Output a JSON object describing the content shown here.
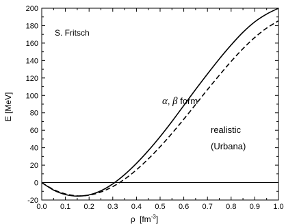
{
  "chart_data": {
    "type": "line",
    "title": "",
    "xlabel_symbol": "ρ",
    "xlabel_unit": "[fm",
    "xlabel_exp": "-3",
    "xlabel_close": "]",
    "ylabel": "E [MeV]",
    "xlim": [
      0.0,
      1.0
    ],
    "ylim": [
      -20,
      200
    ],
    "x_ticks": [
      "0.0",
      "0.1",
      "0.2",
      "0.3",
      "0.4",
      "0.5",
      "0.6",
      "0.7",
      "0.8",
      "0.9",
      "1.0"
    ],
    "y_ticks": [
      "-20",
      "0",
      "20",
      "40",
      "60",
      "80",
      "100",
      "120",
      "140",
      "160",
      "180",
      "200"
    ],
    "grid": false,
    "zero_line": true,
    "series": [
      {
        "name": "α, β form",
        "style": "solid",
        "x": [
          0.0,
          0.05,
          0.1,
          0.15,
          0.2,
          0.25,
          0.3,
          0.35,
          0.4,
          0.45,
          0.5,
          0.55,
          0.6,
          0.65,
          0.7,
          0.75,
          0.8,
          0.85,
          0.9,
          0.95,
          1.0
        ],
        "y": [
          0.0,
          -8.6,
          -13.7,
          -15.5,
          -14.1,
          -9.4,
          -1.5,
          9.2,
          22.0,
          36.6,
          52.7,
          70.1,
          88.4,
          106.8,
          124.6,
          141.8,
          157.8,
          172.4,
          184.4,
          193.3,
          200.0
        ]
      },
      {
        "name": "realistic (Urbana)",
        "style": "dashed",
        "x": [
          0.0,
          0.05,
          0.1,
          0.15,
          0.2,
          0.25,
          0.3,
          0.35,
          0.4,
          0.45,
          0.5,
          0.55,
          0.6,
          0.65,
          0.7,
          0.75,
          0.8,
          0.85,
          0.9,
          0.95,
          1.0
        ],
        "y": [
          0.0,
          -8.0,
          -13.0,
          -15.2,
          -14.4,
          -10.8,
          -4.6,
          3.9,
          14.6,
          27.1,
          41.1,
          56.4,
          72.7,
          89.6,
          106.6,
          123.1,
          139.0,
          153.6,
          166.5,
          177.2,
          185.5
        ]
      }
    ]
  },
  "annotations": {
    "author": "S. Fritsch",
    "alpha_symbol": "α",
    "comma": ", ",
    "beta_symbol": "β",
    "form_word": " form",
    "realistic_line1": "realistic",
    "realistic_line2": "(Urbana)"
  }
}
